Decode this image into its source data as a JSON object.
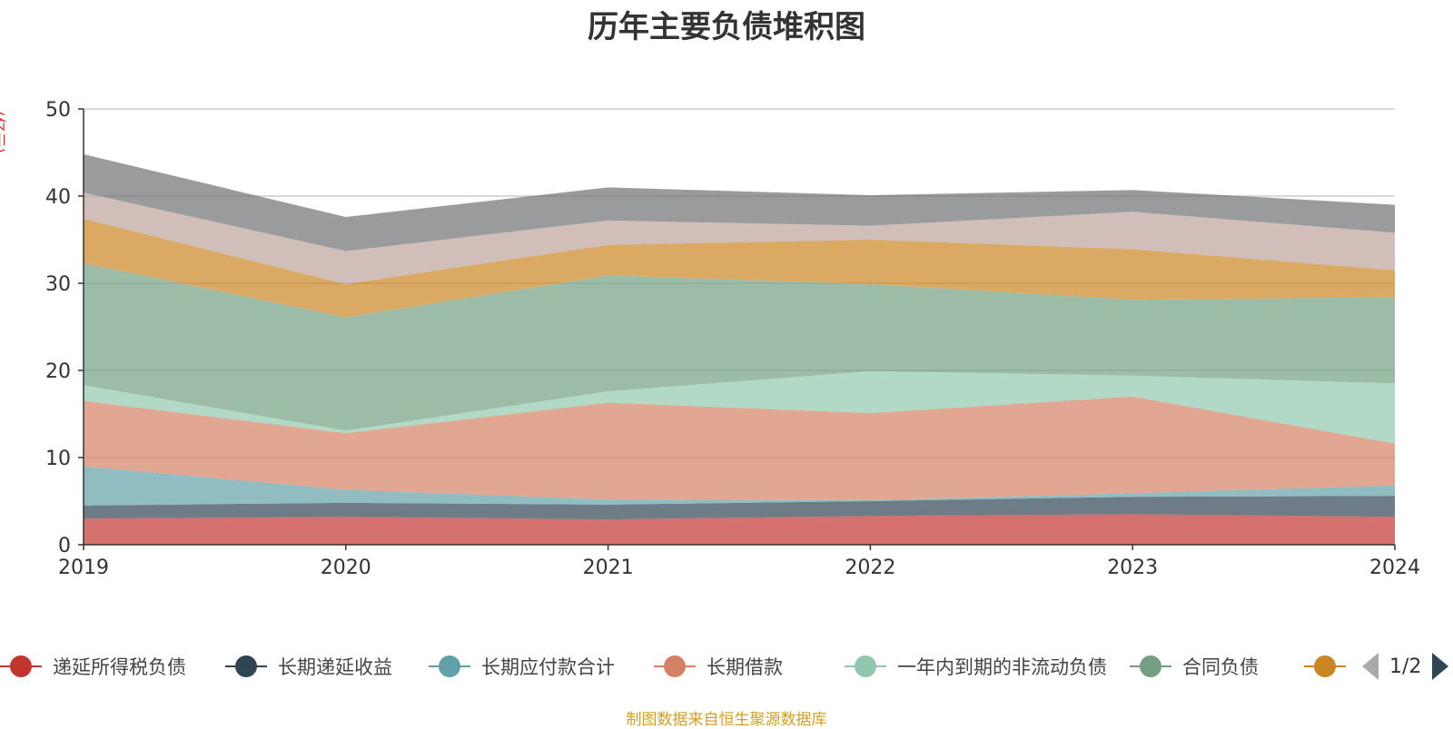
{
  "title": "历年主要负债堆积图",
  "unit": "(亿元)",
  "footer": "制图数据来自恒生聚源数据库",
  "pager": {
    "text": "1/2"
  },
  "legend_visible": [
    {
      "name": "递延所得税负债",
      "color": "#c23531"
    },
    {
      "name": "长期递延收益",
      "color": "#2f4554"
    },
    {
      "name": "长期应付款合计",
      "color": "#61a0a8"
    },
    {
      "name": "长期借款",
      "color": "#d48265"
    },
    {
      "name": "一年内到期的非流动负债",
      "color": "#91c7ae"
    },
    {
      "name": "合同负债",
      "color": "#749f83"
    },
    {
      "name": "",
      "color": "#ca8622"
    }
  ],
  "chart_data": {
    "type": "area",
    "stacked": true,
    "x": [
      "2019",
      "2020",
      "2021",
      "2022",
      "2023",
      "2024"
    ],
    "ylim": [
      0,
      50
    ],
    "yticks": [
      0,
      10,
      20,
      30,
      40,
      50
    ],
    "grid": true,
    "legend_position": "bottom",
    "series": [
      {
        "name": "递延所得税负债",
        "color": "#c23531",
        "values": [
          3.0,
          3.2,
          2.9,
          3.3,
          3.5,
          3.2
        ]
      },
      {
        "name": "长期递延收益",
        "color": "#2f4554",
        "values": [
          1.5,
          1.6,
          1.7,
          1.7,
          2.0,
          2.4
        ]
      },
      {
        "name": "长期应付款合计",
        "color": "#61a0a8",
        "values": [
          4.5,
          1.5,
          0.6,
          0.1,
          0.4,
          1.2
        ]
      },
      {
        "name": "长期借款",
        "color": "#d48265",
        "values": [
          7.5,
          6.5,
          11.1,
          10.0,
          11.1,
          4.8
        ]
      },
      {
        "name": "一年内到期的非流动负债",
        "color": "#91c7ae",
        "values": [
          1.8,
          0.3,
          1.3,
          4.8,
          2.4,
          6.9
        ]
      },
      {
        "name": "合同负债",
        "color": "#749f83",
        "values": [
          14.0,
          13.0,
          13.3,
          10.0,
          8.7,
          9.9
        ]
      },
      {
        "name": "",
        "color": "#ca8622",
        "values": [
          5.1,
          3.8,
          3.5,
          5.1,
          5.8,
          3.1
        ]
      },
      {
        "name": "",
        "color": "#bda29a",
        "values": [
          3.0,
          3.8,
          2.8,
          1.6,
          4.3,
          4.3
        ]
      },
      {
        "name": "",
        "color": "#6e7074",
        "values": [
          4.4,
          3.9,
          3.8,
          3.5,
          2.5,
          3.2
        ]
      }
    ]
  }
}
